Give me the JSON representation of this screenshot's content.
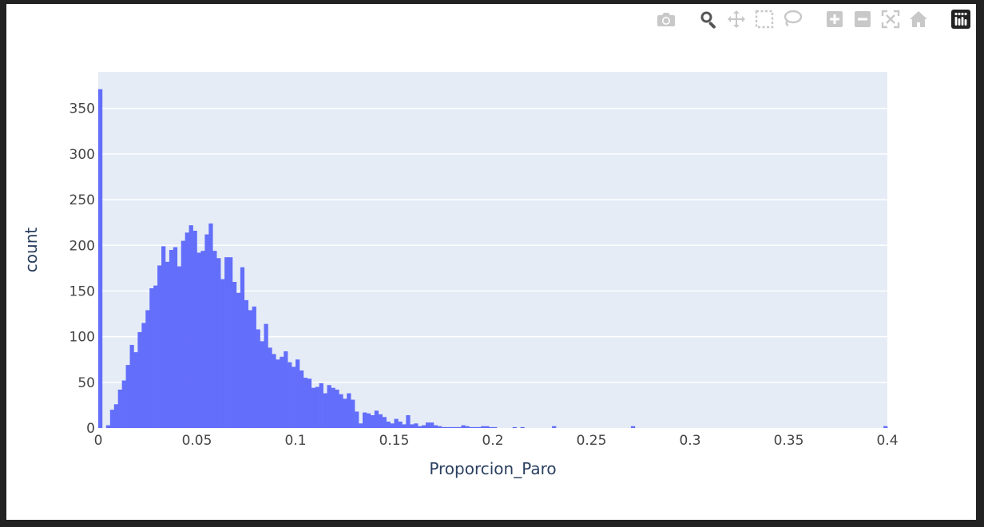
{
  "modebar": {
    "buttons": [
      {
        "name": "camera-icon",
        "title": "Download plot as a png"
      },
      {
        "name": "zoom-icon",
        "title": "Zoom",
        "active": true
      },
      {
        "name": "pan-icon",
        "title": "Pan"
      },
      {
        "name": "box-select-icon",
        "title": "Box Select"
      },
      {
        "name": "lasso-select-icon",
        "title": "Lasso Select"
      },
      {
        "name": "zoom-in-icon",
        "title": "Zoom in"
      },
      {
        "name": "zoom-out-icon",
        "title": "Zoom out"
      },
      {
        "name": "autoscale-icon",
        "title": "Autoscale"
      },
      {
        "name": "reset-axes-icon",
        "title": "Reset axes"
      },
      {
        "name": "plotly-logo-icon",
        "title": "Produced with Plotly"
      }
    ],
    "icon_color": "#c8c8c8",
    "active_color": "#555555"
  },
  "chart_data": {
    "type": "bar",
    "title": "",
    "xlabel": "Proporcion_Paro",
    "ylabel": "count",
    "xlim": [
      0,
      0.4
    ],
    "ylim": [
      0,
      390
    ],
    "xticks": [
      0,
      0.05,
      0.1,
      0.15,
      0.2,
      0.25,
      0.3,
      0.35,
      0.4
    ],
    "xtick_labels": [
      "0",
      "0.05",
      "0.1",
      "0.15",
      "0.2",
      "0.25",
      "0.3",
      "0.35",
      "0.4"
    ],
    "yticks": [
      0,
      50,
      100,
      150,
      200,
      250,
      300,
      350
    ],
    "ytick_labels": [
      "0",
      "50",
      "100",
      "150",
      "200",
      "250",
      "300",
      "350"
    ],
    "grid": true,
    "bar_color": "#636efa",
    "plot_bg": "#e5ecf6",
    "bin_width": 0.002,
    "bins_start": [
      0,
      0.002,
      0.004,
      0.006,
      0.008,
      0.01,
      0.012,
      0.014,
      0.016,
      0.018,
      0.02,
      0.022,
      0.024,
      0.026,
      0.028,
      0.03,
      0.032,
      0.034,
      0.036,
      0.038,
      0.04,
      0.042,
      0.044,
      0.046,
      0.048,
      0.05,
      0.052,
      0.054,
      0.056,
      0.058,
      0.06,
      0.062,
      0.064,
      0.066,
      0.068,
      0.07,
      0.072,
      0.074,
      0.076,
      0.078,
      0.08,
      0.082,
      0.084,
      0.086,
      0.088,
      0.09,
      0.092,
      0.094,
      0.096,
      0.098,
      0.1,
      0.102,
      0.104,
      0.106,
      0.108,
      0.11,
      0.112,
      0.114,
      0.116,
      0.118,
      0.12,
      0.122,
      0.124,
      0.126,
      0.128,
      0.13,
      0.132,
      0.134,
      0.136,
      0.138,
      0.14,
      0.142,
      0.144,
      0.146,
      0.148,
      0.15,
      0.152,
      0.154,
      0.156,
      0.158,
      0.16,
      0.162,
      0.164,
      0.166,
      0.168,
      0.17,
      0.172,
      0.174,
      0.176,
      0.178,
      0.18,
      0.182,
      0.184,
      0.186,
      0.188,
      0.19,
      0.192,
      0.194,
      0.196,
      0.198,
      0.2,
      0.21,
      0.214,
      0.23,
      0.27,
      0.398
    ],
    "values": [
      371,
      0,
      3,
      20,
      26,
      42,
      52,
      69,
      91,
      83,
      105,
      115,
      129,
      153,
      156,
      178,
      199,
      182,
      195,
      198,
      177,
      205,
      214,
      222,
      216,
      192,
      194,
      212,
      224,
      194,
      186,
      163,
      187,
      187,
      160,
      148,
      176,
      140,
      129,
      133,
      108,
      95,
      114,
      88,
      81,
      75,
      78,
      84,
      72,
      67,
      75,
      63,
      55,
      54,
      44,
      45,
      49,
      38,
      47,
      44,
      42,
      37,
      32,
      38,
      31,
      18,
      5,
      17,
      16,
      14,
      19,
      15,
      12,
      7,
      5,
      10,
      7,
      4,
      14,
      4,
      5,
      2,
      3,
      6,
      6,
      3,
      2,
      1,
      1,
      1,
      1,
      1,
      3,
      2,
      1,
      1,
      1,
      2,
      2,
      1,
      1,
      1,
      1,
      2,
      2,
      2
    ]
  }
}
